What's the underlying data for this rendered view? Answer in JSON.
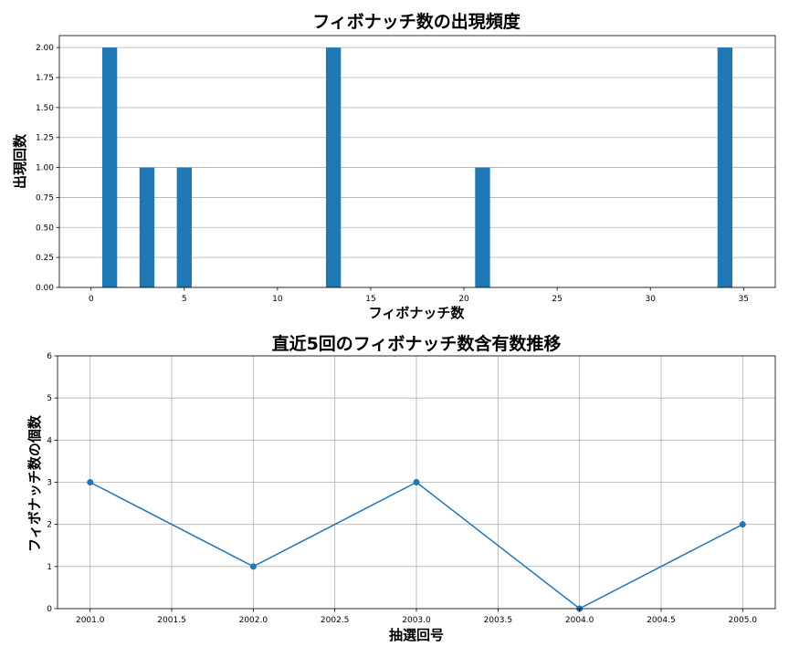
{
  "chart_data": [
    {
      "type": "bar",
      "title": "フィボナッチ数の出現頻度",
      "xlabel": "フィボナッチ数",
      "ylabel": "出現回数",
      "x": [
        1,
        3,
        5,
        13,
        21,
        34
      ],
      "values": [
        2,
        1,
        1,
        2,
        1,
        2
      ],
      "xlim": [
        -1.7,
        36.7
      ],
      "ylim": [
        0,
        2.1
      ],
      "xticks": [
        0,
        5,
        10,
        15,
        20,
        25,
        30,
        35
      ],
      "xtick_labels": [
        "0",
        "5",
        "10",
        "15",
        "20",
        "25",
        "30",
        "35"
      ],
      "yticks": [
        0,
        0.25,
        0.5,
        0.75,
        1.0,
        1.25,
        1.5,
        1.75,
        2.0
      ],
      "ytick_labels": [
        "0.00",
        "0.25",
        "0.50",
        "0.75",
        "1.00",
        "1.25",
        "1.50",
        "1.75",
        "2.00"
      ],
      "grid": "y",
      "color": "#1f77b4"
    },
    {
      "type": "line",
      "title": "直近5回のフィボナッチ数含有数推移",
      "xlabel": "抽選回号",
      "ylabel": "フィボナッチ数の個数",
      "x": [
        2001,
        2002,
        2003,
        2004,
        2005
      ],
      "values": [
        3,
        1,
        3,
        0,
        2
      ],
      "xlim": [
        2000.8,
        2005.2
      ],
      "ylim": [
        0,
        6
      ],
      "xticks": [
        2001.0,
        2001.5,
        2002.0,
        2002.5,
        2003.0,
        2003.5,
        2004.0,
        2004.5,
        2005.0
      ],
      "xtick_labels": [
        "2001.0",
        "2001.5",
        "2002.0",
        "2002.5",
        "2003.0",
        "2003.5",
        "2004.0",
        "2004.5",
        "2005.0"
      ],
      "yticks": [
        0,
        1,
        2,
        3,
        4,
        5,
        6
      ],
      "ytick_labels": [
        "0",
        "1",
        "2",
        "3",
        "4",
        "5",
        "6"
      ],
      "grid": "both",
      "color": "#1f77b4",
      "marker": "circle"
    }
  ]
}
